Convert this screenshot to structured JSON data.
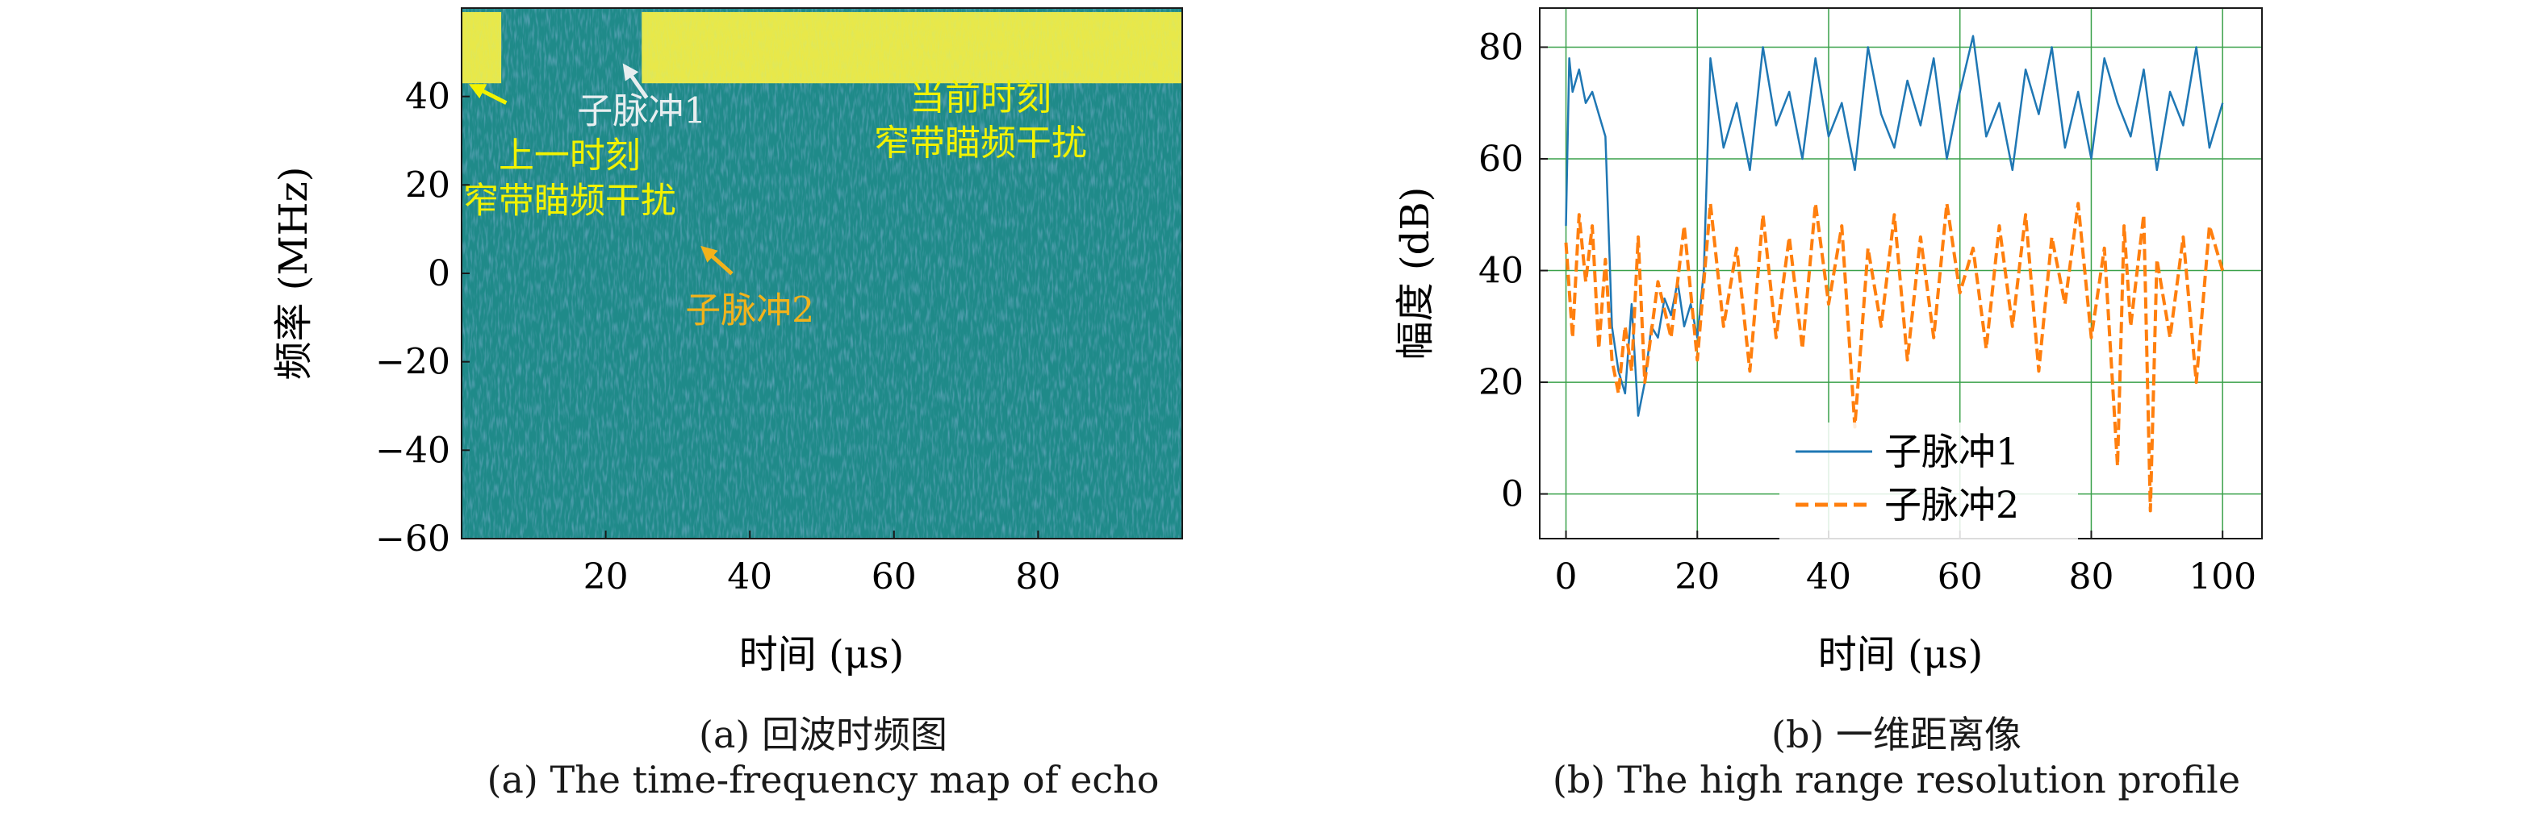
{
  "captions": {
    "a_cn": "(a) 回波时频图",
    "a_en": "(a) The time-frequency map of echo",
    "b_cn": "(b) 一维距离像",
    "b_en": "(b) The high range resolution profile"
  },
  "colors": {
    "background": "#1f8a89",
    "background_dark": "#2a6e8c",
    "interference": "#e8e84a",
    "annot_yellow": "#f2f200",
    "annot_orange": "#f2b21b",
    "annot_white": "#e8eef0",
    "series1": "#1f77b4",
    "series2": "#ff7f0e",
    "grid": "#3aa14a"
  },
  "chart_data": [
    {
      "type": "heatmap",
      "xlabel": "时间 (μs)",
      "ylabel": "频率 (MHz)",
      "xlim": [
        0,
        100
      ],
      "ylim": [
        -60,
        60
      ],
      "xticks": [
        20,
        40,
        60,
        80
      ],
      "yticks": [
        -60,
        -40,
        -20,
        0,
        20,
        40
      ],
      "interference_bands": [
        {
          "name": "上一时刻窄带瞄频干扰",
          "t": [
            0,
            5.5
          ],
          "f": [
            43,
            58
          ]
        },
        {
          "name": "当前时刻窄带瞄频干扰",
          "t": [
            25,
            100
          ],
          "f": [
            43,
            58
          ]
        }
      ],
      "annotations": [
        {
          "lines": [
            "子脉冲1"
          ],
          "color": "white",
          "text_at": [
            25,
            34
          ],
          "arrow_to": [
            23,
            46
          ]
        },
        {
          "lines": [
            "上一时刻",
            "窄带瞄频干扰"
          ],
          "color": "yellow",
          "text_at": [
            15,
            24
          ],
          "arrow_to": [
            2,
            42
          ]
        },
        {
          "lines": [
            "当前时刻",
            "窄带瞄频干扰"
          ],
          "color": "yellow",
          "text_at": [
            72,
            37
          ],
          "arrow_to": null
        },
        {
          "lines": [
            "子脉冲2"
          ],
          "color": "orange",
          "text_at": [
            40,
            -11
          ],
          "arrow_to": [
            34,
            5
          ]
        }
      ]
    },
    {
      "type": "line",
      "xlabel": "时间 (μs)",
      "ylabel": "幅度 (dB)",
      "xlim": [
        -4,
        106
      ],
      "ylim": [
        -8,
        87
      ],
      "xticks": [
        0,
        20,
        40,
        60,
        80,
        100
      ],
      "yticks": [
        0,
        20,
        40,
        60,
        80
      ],
      "grid": true,
      "legend_position": "lower-center",
      "series": [
        {
          "name": "子脉冲1",
          "style": "solid",
          "x": [
            0,
            0.5,
            1,
            2,
            3,
            4,
            5,
            6,
            7,
            8,
            9,
            10,
            11,
            12,
            13,
            14,
            15,
            16,
            17,
            18,
            19,
            20,
            21,
            22,
            24,
            26,
            28,
            30,
            32,
            34,
            36,
            38,
            40,
            42,
            44,
            46,
            48,
            50,
            52,
            54,
            56,
            58,
            60,
            62,
            64,
            66,
            68,
            70,
            72,
            74,
            76,
            78,
            80,
            82,
            84,
            86,
            88,
            90,
            92,
            94,
            96,
            98,
            100
          ],
          "y": [
            48,
            78,
            72,
            76,
            70,
            72,
            68,
            64,
            30,
            22,
            18,
            34,
            14,
            20,
            30,
            28,
            35,
            32,
            38,
            30,
            34,
            28,
            40,
            78,
            62,
            70,
            58,
            80,
            66,
            72,
            60,
            78,
            64,
            70,
            58,
            80,
            68,
            62,
            74,
            66,
            78,
            60,
            72,
            82,
            64,
            70,
            58,
            76,
            68,
            80,
            62,
            72,
            60,
            78,
            70,
            64,
            76,
            58,
            72,
            66,
            80,
            62,
            70
          ]
        },
        {
          "name": "子脉冲2",
          "style": "dashed",
          "x": [
            0,
            1,
            2,
            3,
            4,
            5,
            6,
            7,
            8,
            9,
            10,
            11,
            12,
            14,
            16,
            18,
            20,
            22,
            24,
            26,
            28,
            30,
            32,
            34,
            36,
            38,
            40,
            42,
            44,
            46,
            48,
            50,
            52,
            54,
            56,
            58,
            60,
            62,
            64,
            66,
            68,
            70,
            72,
            74,
            76,
            78,
            80,
            82,
            84,
            85,
            86,
            88,
            89,
            90,
            92,
            94,
            96,
            98,
            100
          ],
          "y": [
            45,
            28,
            50,
            38,
            48,
            26,
            42,
            24,
            18,
            30,
            22,
            46,
            20,
            38,
            28,
            48,
            24,
            52,
            30,
            44,
            22,
            50,
            28,
            46,
            26,
            52,
            34,
            48,
            12,
            44,
            30,
            50,
            24,
            46,
            28,
            52,
            36,
            44,
            26,
            48,
            30,
            50,
            22,
            46,
            34,
            52,
            28,
            44,
            5,
            48,
            30,
            50,
            -3,
            42,
            28,
            46,
            20,
            48,
            40
          ]
        }
      ]
    }
  ]
}
